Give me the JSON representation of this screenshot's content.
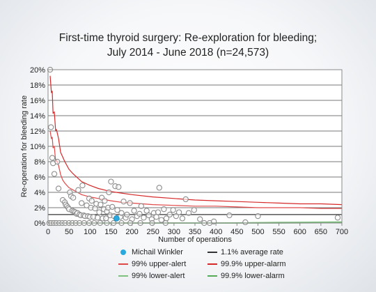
{
  "title_line1": "First-time thyroid surgery: Re-exploration for bleeding;",
  "title_line2": "July 2014 - June 2018 (n=24,573)",
  "legend": {
    "highlight": {
      "label": "Michail Winkler",
      "color": "#29a8e0"
    },
    "average": {
      "label": "1.1% average rate",
      "color": "#333333"
    },
    "upper_alert": {
      "label": "99% upper-alert",
      "color": "#e04848"
    },
    "upper_alarm": {
      "label": "99.9% upper-alarm",
      "color": "#d62828"
    },
    "lower_alert": {
      "label": "99% lower-alert",
      "color": "#7ec07e"
    },
    "lower_alarm": {
      "label": "99.9% lower-alarm",
      "color": "#55aa55"
    }
  },
  "chart_data": {
    "type": "scatter",
    "title": "First-time thyroid surgery: Re-exploration for bleeding; July 2014 - June 2018 (n=24,573)",
    "xlabel": "Number of operations",
    "ylabel": "Re-operation for bleeding rate",
    "xlim": [
      0,
      700
    ],
    "ylim": [
      0,
      20
    ],
    "x_ticks": [
      "0",
      "50",
      "100",
      "150",
      "200",
      "250",
      "300",
      "350",
      "400",
      "450",
      "500",
      "550",
      "600",
      "650",
      "700"
    ],
    "y_ticks": [
      "0%",
      "2%",
      "4%",
      "6%",
      "8%",
      "10%",
      "12%",
      "14%",
      "16%",
      "18%",
      "20%"
    ],
    "grid": "horizontal",
    "average_rate": 1.1,
    "upper_alert": {
      "x": [
        5,
        8,
        10,
        12,
        15,
        18,
        20,
        25,
        30,
        35,
        40,
        50,
        60,
        70,
        80,
        100,
        120,
        150,
        175,
        200,
        250,
        300,
        350,
        400,
        450,
        500,
        550,
        600,
        650,
        700
      ],
      "y": [
        12.0,
        11.0,
        11.2,
        9.8,
        10.0,
        8.0,
        8.3,
        7.5,
        6.3,
        5.6,
        5.2,
        4.6,
        4.3,
        4.0,
        3.7,
        3.4,
        3.2,
        2.9,
        2.7,
        2.6,
        2.4,
        2.3,
        2.2,
        2.2,
        2.1,
        2.0,
        2.0,
        2.0,
        1.9,
        1.9
      ]
    },
    "upper_alarm": {
      "x": [
        5,
        8,
        10,
        12,
        15,
        18,
        20,
        25,
        30,
        35,
        40,
        50,
        60,
        70,
        80,
        100,
        120,
        150,
        175,
        200,
        250,
        300,
        350,
        400,
        450,
        500,
        550,
        600,
        650,
        700
      ],
      "y": [
        19.2,
        17.0,
        17.2,
        14.3,
        14.5,
        12.0,
        12.2,
        11.0,
        9.2,
        8.6,
        8.0,
        7.0,
        6.4,
        5.9,
        5.4,
        4.9,
        4.5,
        4.1,
        3.9,
        3.7,
        3.4,
        3.2,
        3.0,
        2.9,
        2.8,
        2.7,
        2.6,
        2.5,
        2.5,
        2.4
      ]
    },
    "lower_alert": {
      "x": [
        0,
        400,
        450,
        500,
        550,
        600,
        650,
        700
      ],
      "y": [
        0,
        0,
        0.02,
        0.05,
        0.08,
        0.1,
        0.12,
        0.15
      ]
    },
    "lower_alarm": {
      "x": [
        0,
        500,
        550,
        600,
        650,
        700
      ],
      "y": [
        0,
        0,
        0.01,
        0.02,
        0.03,
        0.04
      ]
    },
    "highlight_point": {
      "name": "Michail Winkler",
      "x": 163,
      "y": 0.6
    },
    "points": [
      {
        "x": 5,
        "y": 20.0
      },
      {
        "x": 7,
        "y": 12.5
      },
      {
        "x": 10,
        "y": 8.5
      },
      {
        "x": 12,
        "y": 7.8
      },
      {
        "x": 15,
        "y": 6.4
      },
      {
        "x": 22,
        "y": 8.0
      },
      {
        "x": 25,
        "y": 4.5
      },
      {
        "x": 35,
        "y": 3.0
      },
      {
        "x": 40,
        "y": 2.7
      },
      {
        "x": 42,
        "y": 2.4
      },
      {
        "x": 45,
        "y": 2.2
      },
      {
        "x": 48,
        "y": 2.0
      },
      {
        "x": 50,
        "y": 1.8
      },
      {
        "x": 52,
        "y": 4.0
      },
      {
        "x": 55,
        "y": 3.5
      },
      {
        "x": 58,
        "y": 1.6
      },
      {
        "x": 60,
        "y": 3.3
      },
      {
        "x": 62,
        "y": 1.5
      },
      {
        "x": 65,
        "y": 1.4
      },
      {
        "x": 68,
        "y": 1.2
      },
      {
        "x": 70,
        "y": 1.3
      },
      {
        "x": 72,
        "y": 4.3
      },
      {
        "x": 75,
        "y": 1.1
      },
      {
        "x": 78,
        "y": 1.0
      },
      {
        "x": 80,
        "y": 2.6
      },
      {
        "x": 82,
        "y": 4.9
      },
      {
        "x": 85,
        "y": 1.0
      },
      {
        "x": 88,
        "y": 0.9
      },
      {
        "x": 92,
        "y": 2.3
      },
      {
        "x": 95,
        "y": 0.9
      },
      {
        "x": 98,
        "y": 3.2
      },
      {
        "x": 100,
        "y": 0.8
      },
      {
        "x": 102,
        "y": 2.0
      },
      {
        "x": 104,
        "y": 2.9
      },
      {
        "x": 108,
        "y": 0.8
      },
      {
        "x": 112,
        "y": 1.9
      },
      {
        "x": 115,
        "y": 2.5
      },
      {
        "x": 118,
        "y": 0.7
      },
      {
        "x": 122,
        "y": 1.4
      },
      {
        "x": 125,
        "y": 2.4
      },
      {
        "x": 128,
        "y": 3.3
      },
      {
        "x": 130,
        "y": 0.6
      },
      {
        "x": 133,
        "y": 1.8
      },
      {
        "x": 135,
        "y": 2.9
      },
      {
        "x": 138,
        "y": 0.6
      },
      {
        "x": 140,
        "y": 1.5
      },
      {
        "x": 143,
        "y": 2.0
      },
      {
        "x": 145,
        "y": 4.0
      },
      {
        "x": 148,
        "y": 1.0
      },
      {
        "x": 150,
        "y": 5.4
      },
      {
        "x": 153,
        "y": 2.1
      },
      {
        "x": 157,
        "y": 0.9
      },
      {
        "x": 160,
        "y": 4.8
      },
      {
        "x": 165,
        "y": 1.7
      },
      {
        "x": 168,
        "y": 4.7
      },
      {
        "x": 172,
        "y": 0.8
      },
      {
        "x": 175,
        "y": 1.3
      },
      {
        "x": 180,
        "y": 2.8
      },
      {
        "x": 185,
        "y": 0.7
      },
      {
        "x": 188,
        "y": 1.1
      },
      {
        "x": 195,
        "y": 2.6
      },
      {
        "x": 200,
        "y": 0.5
      },
      {
        "x": 205,
        "y": 1.6
      },
      {
        "x": 212,
        "y": 0.9
      },
      {
        "x": 218,
        "y": 1.2
      },
      {
        "x": 222,
        "y": 2.2
      },
      {
        "x": 228,
        "y": 0.7
      },
      {
        "x": 235,
        "y": 1.6
      },
      {
        "x": 240,
        "y": 1.0
      },
      {
        "x": 247,
        "y": 0.5
      },
      {
        "x": 252,
        "y": 1.3
      },
      {
        "x": 258,
        "y": 0.8
      },
      {
        "x": 262,
        "y": 1.4
      },
      {
        "x": 265,
        "y": 4.6
      },
      {
        "x": 270,
        "y": 0.4
      },
      {
        "x": 276,
        "y": 1.8
      },
      {
        "x": 282,
        "y": 0.6
      },
      {
        "x": 290,
        "y": 1.1
      },
      {
        "x": 298,
        "y": 1.7
      },
      {
        "x": 305,
        "y": 0.9
      },
      {
        "x": 312,
        "y": 1.4
      },
      {
        "x": 320,
        "y": 0.6
      },
      {
        "x": 328,
        "y": 3.1
      },
      {
        "x": 335,
        "y": 1.3
      },
      {
        "x": 348,
        "y": 1.7
      },
      {
        "x": 362,
        "y": 0.5
      },
      {
        "x": 372,
        "y": 0.0
      },
      {
        "x": 385,
        "y": 0.0
      },
      {
        "x": 395,
        "y": 0.2
      },
      {
        "x": 432,
        "y": 1.0
      },
      {
        "x": 470,
        "y": 0.1
      },
      {
        "x": 500,
        "y": 0.9
      },
      {
        "x": 690,
        "y": 0.7
      },
      {
        "x": 3,
        "y": 0
      },
      {
        "x": 8,
        "y": 0
      },
      {
        "x": 14,
        "y": 0
      },
      {
        "x": 20,
        "y": 0
      },
      {
        "x": 27,
        "y": 0
      },
      {
        "x": 34,
        "y": 0
      },
      {
        "x": 41,
        "y": 0
      },
      {
        "x": 50,
        "y": 0
      },
      {
        "x": 58,
        "y": 0
      },
      {
        "x": 66,
        "y": 0
      },
      {
        "x": 75,
        "y": 0
      },
      {
        "x": 86,
        "y": 0
      },
      {
        "x": 98,
        "y": 0
      },
      {
        "x": 110,
        "y": 0
      },
      {
        "x": 124,
        "y": 0
      },
      {
        "x": 140,
        "y": 0
      },
      {
        "x": 156,
        "y": 0
      },
      {
        "x": 175,
        "y": 0
      },
      {
        "x": 196,
        "y": 0
      },
      {
        "x": 220,
        "y": 0
      },
      {
        "x": 248,
        "y": 0
      },
      {
        "x": 280,
        "y": 0
      }
    ]
  }
}
